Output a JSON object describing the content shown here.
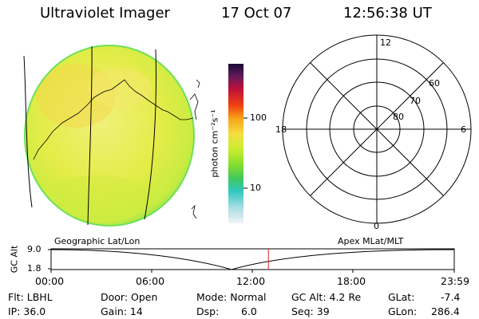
{
  "header": {
    "instrument": "Ultraviolet Imager",
    "date": "17 Oct 07",
    "time": "12:56:38 UT"
  },
  "colorbar": {
    "unit_label": "photon cm⁻²s⁻¹",
    "ticks": [
      "100",
      "10"
    ]
  },
  "polar": {
    "mlt_labels": {
      "top": "12",
      "left": "18",
      "right": "6",
      "bottom": "0"
    },
    "lat_labels": [
      "60",
      "70",
      "80"
    ]
  },
  "panel_labels": {
    "left": "Geographic Lat/Lon",
    "right": "Apex MLat/MLT"
  },
  "altitude_plot": {
    "ylabel": "GC Alt",
    "yticks": [
      "9.0",
      "1.8"
    ],
    "xticks": [
      "00:00",
      "06:00",
      "12:00",
      "18:00",
      "23:59"
    ],
    "marker_time_fraction": 0.539
  },
  "info": {
    "row1": {
      "filter": "Flt: LBHL",
      "door": "Door: Open",
      "mode": "Mode: Normal",
      "gc_alt": "GC Alt: 4.2 Re",
      "glat_label": "GLat:",
      "glat_value": "-7.4"
    },
    "row2": {
      "ip": "IP: 36.0",
      "gain": "Gain: 14",
      "dsp_label": "Dsp:",
      "dsp_value": "6.0",
      "seq": "Seq: 39",
      "glon_label": "GLon:",
      "glon_value": "286.4"
    }
  },
  "colors": {
    "disk_fill": "#e6f03c",
    "disk_edge": "#6ee05a",
    "disk_patch": "#f2d84a",
    "marker": "#e02020"
  }
}
